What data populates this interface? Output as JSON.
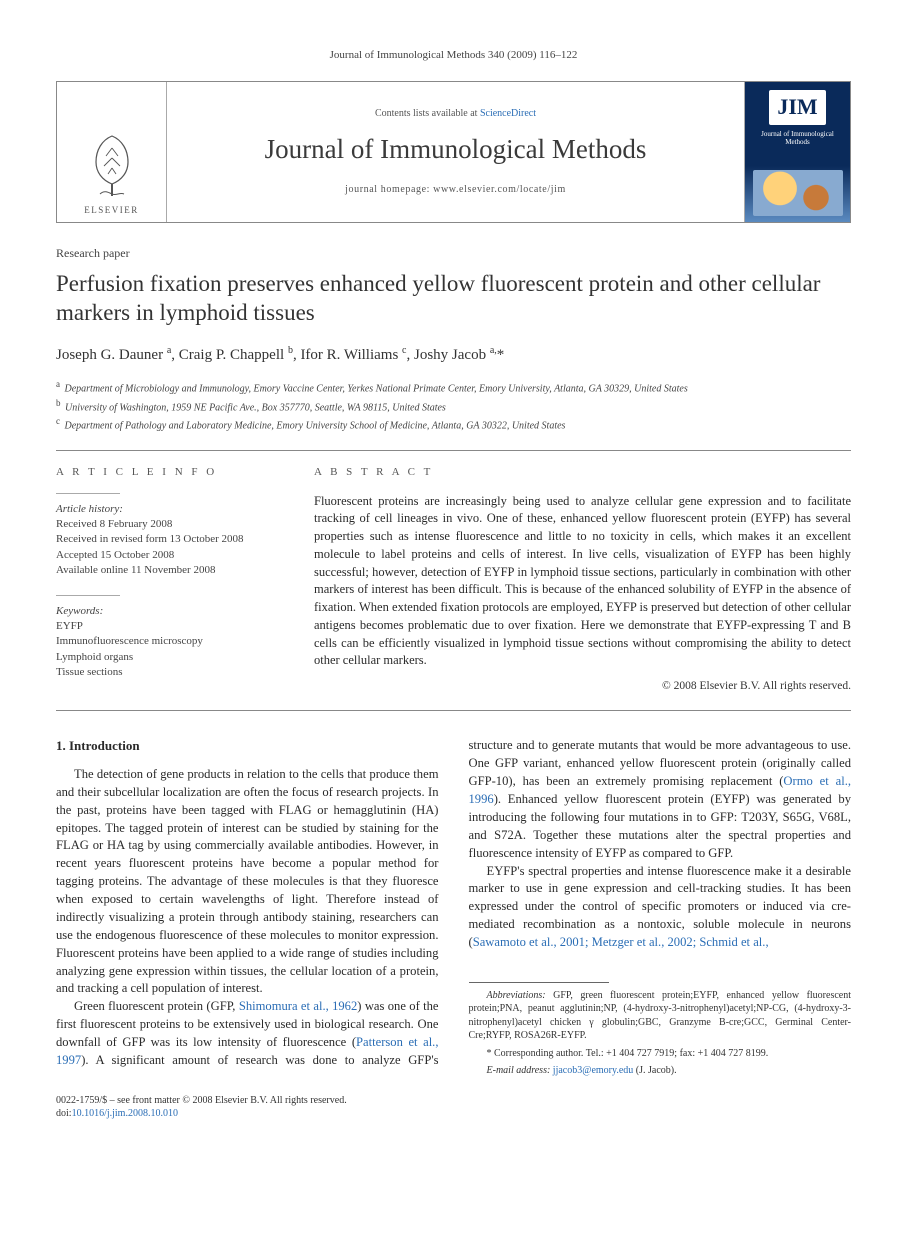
{
  "running_head": "Journal of Immunological Methods 340 (2009) 116–122",
  "masthead": {
    "contents_prefix": "Contents lists available at ",
    "contents_link": "ScienceDirect",
    "journal_name": "Journal of Immunological Methods",
    "homepage_prefix": "journal homepage: ",
    "homepage_url": "www.elsevier.com/locate/jim",
    "publisher": "ELSEVIER",
    "cover_badge": "JIM",
    "cover_title": "Journal of Immunological Methods"
  },
  "article_type": "Research paper",
  "title": "Perfusion fixation preserves enhanced yellow fluorescent protein and other cellular markers in lymphoid tissues",
  "authors_html": "Joseph G. Dauner <sup>a</sup>, Craig P. Chappell <sup>b</sup>, Ifor R. Williams <sup>c</sup>, Joshy Jacob <sup>a,</sup>",
  "corr_mark": "*",
  "affiliations": [
    {
      "sup": "a",
      "text": "Department of Microbiology and Immunology, Emory Vaccine Center, Yerkes National Primate Center, Emory University, Atlanta, GA 30329, United States"
    },
    {
      "sup": "b",
      "text": "University of Washington, 1959 NE Pacific Ave., Box 357770, Seattle, WA 98115, United States"
    },
    {
      "sup": "c",
      "text": "Department of Pathology and Laboratory Medicine, Emory University School of Medicine, Atlanta, GA 30322, United States"
    }
  ],
  "info": {
    "head": "A R T I C L E   I N F O",
    "history_label": "Article history:",
    "history": [
      "Received 8 February 2008",
      "Received in revised form 13 October 2008",
      "Accepted 15 October 2008",
      "Available online 11 November 2008"
    ],
    "keywords_label": "Keywords:",
    "keywords": [
      "EYFP",
      "Immunofluorescence microscopy",
      "Lymphoid organs",
      "Tissue sections"
    ]
  },
  "abstract": {
    "head": "A B S T R A C T",
    "text": "Fluorescent proteins are increasingly being used to analyze cellular gene expression and to facilitate tracking of cell lineages in vivo. One of these, enhanced yellow fluorescent protein (EYFP) has several properties such as intense fluorescence and little to no toxicity in cells, which makes it an excellent molecule to label proteins and cells of interest. In live cells, visualization of EYFP has been highly successful; however, detection of EYFP in lymphoid tissue sections, particularly in combination with other markers of interest has been difficult. This is because of the enhanced solubility of EYFP in the absence of fixation. When extended fixation protocols are employed, EYFP is preserved but detection of other cellular antigens becomes problematic due to over fixation. Here we demonstrate that EYFP-expressing T and B cells can be efficiently visualized in lymphoid tissue sections without compromising the ability to detect other cellular markers.",
    "copyright": "© 2008 Elsevier B.V. All rights reserved."
  },
  "body": {
    "heading": "1. Introduction",
    "p1": "The detection of gene products in relation to the cells that produce them and their subcellular localization are often the focus of research projects. In the past, proteins have been tagged with FLAG or hemagglutinin (HA) epitopes. The tagged protein of interest can be studied by staining for the FLAG or HA tag by using commercially available antibodies. However, in recent years fluorescent proteins have become a popular method for tagging proteins. The advantage of these molecules is that they fluoresce when exposed to certain wavelengths of light. Therefore instead of indirectly visualizing a protein through antibody staining, researchers can use the endogenous fluorescence of these molecules to monitor expression. Fluorescent proteins have been applied to a wide",
    "p1b": "range of studies including analyzing gene expression within tissues, the cellular location of a protein, and tracking a cell population of interest.",
    "p2a": "Green fluorescent protein (GFP, ",
    "p2ref1": "Shimomura et al., 1962",
    "p2b": ") was one of the first fluorescent proteins to be extensively used in biological research. One downfall of GFP was its low intensity of fluorescence (",
    "p2ref2": "Patterson et al., 1997",
    "p2c": "). A significant amount of research was done to analyze GFP's structure and to generate mutants that would be more advantageous to use. One GFP variant, enhanced yellow fluorescent protein (originally called GFP-10), has been an extremely promising replacement (",
    "p2ref3": "Ormo et al., 1996",
    "p2d": "). Enhanced yellow fluorescent protein (EYFP) was generated by introducing the following four mutations in to GFP: T203Y, S65G, V68L, and S72A. Together these mutations alter the spectral properties and fluorescence intensity of EYFP as compared to GFP.",
    "p3a": "EYFP's spectral properties and intense fluorescence make it a desirable marker to use in gene expression and cell-tracking studies. It has been expressed under the control of specific promoters or induced via cre-mediated recombination as a nontoxic, soluble molecule in neurons (",
    "p3ref1": "Sawamoto et al., 2001; Metzger et al., 2002; Schmid et al.,"
  },
  "footnotes": {
    "abbrev_label": "Abbreviations:",
    "abbrev": " GFP, green fluorescent protein;EYFP, enhanced yellow fluorescent protein;PNA, peanut agglutinin;NP, (4-hydroxy-3-nitrophenyl)acetyl;NP-CG, (4-hydroxy-3-nitrophenyl)acetyl chicken γ globulin;GBC, Granzyme B-cre;GCC, Germinal Center-Cre;RYFP, ROSA26R-EYFP.",
    "corr_label": "* Corresponding author. ",
    "corr_text": "Tel.: +1 404 727 7919; fax: +1 404 727 8199.",
    "email_label": "E-mail address: ",
    "email": "jjacob3@emory.edu",
    "email_suffix": " (J. Jacob)."
  },
  "footer": {
    "line1": "0022-1759/$ – see front matter © 2008 Elsevier B.V. All rights reserved.",
    "doi_prefix": "doi:",
    "doi": "10.1016/j.jim.2008.10.010"
  },
  "colors": {
    "link": "#2a6db5",
    "rule": "#888888",
    "text": "#2a2a2a",
    "cover_bg_top": "#0a2a5a",
    "cover_bg_bottom": "#5a8ac0"
  },
  "typography": {
    "body_pt": 12.6,
    "title_pt": 23,
    "journal_pt": 27,
    "small_pt": 10,
    "abstract_pt": 12.5
  }
}
